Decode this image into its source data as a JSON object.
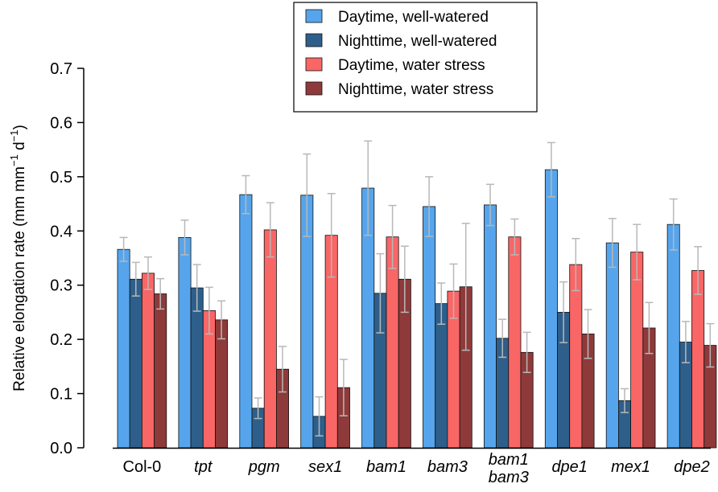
{
  "chart_data": {
    "type": "bar",
    "title": "",
    "xlabel": "",
    "ylabel": "Relative elongation rate (mm mm",
    "ylabel_sup1": "−1",
    "ylabel_mid": " d",
    "ylabel_sup2": "−1",
    "ylabel_end": ")",
    "ylim": [
      0,
      0.7
    ],
    "yticks": [
      "0.0",
      "0.1",
      "0.2",
      "0.3",
      "0.4",
      "0.5",
      "0.6",
      "0.7"
    ],
    "categories": [
      {
        "label": "Col-0",
        "italic": false
      },
      {
        "label": "tpt",
        "italic": true
      },
      {
        "label": "pgm",
        "italic": true
      },
      {
        "label": "sex1",
        "italic": true
      },
      {
        "label": "bam1",
        "italic": true
      },
      {
        "label": "bam3",
        "italic": true
      },
      {
        "label": "bam1",
        "label2": "bam3",
        "italic": true
      },
      {
        "label": "dpe1",
        "italic": true
      },
      {
        "label": "mex1",
        "italic": true
      },
      {
        "label": "dpe2",
        "italic": true
      }
    ],
    "series": [
      {
        "name": "Daytime, well-watered",
        "color": "#56A5EC",
        "values": [
          0.366,
          0.388,
          0.467,
          0.466,
          0.479,
          0.445,
          0.448,
          0.513,
          0.378,
          0.412
        ],
        "errors": [
          0.022,
          0.032,
          0.035,
          0.076,
          0.087,
          0.055,
          0.038,
          0.05,
          0.045,
          0.047
        ]
      },
      {
        "name": "Nighttime, well-watered",
        "color": "#2E5F8A",
        "values": [
          0.311,
          0.295,
          0.073,
          0.058,
          0.285,
          0.266,
          0.202,
          0.25,
          0.087,
          0.195
        ],
        "errors": [
          0.031,
          0.043,
          0.019,
          0.036,
          0.073,
          0.038,
          0.035,
          0.056,
          0.022,
          0.038
        ]
      },
      {
        "name": "Daytime, water stress",
        "color": "#F96666",
        "values": [
          0.322,
          0.253,
          0.402,
          0.392,
          0.389,
          0.289,
          0.389,
          0.338,
          0.361,
          0.327
        ],
        "errors": [
          0.03,
          0.043,
          0.05,
          0.077,
          0.058,
          0.05,
          0.033,
          0.048,
          0.051,
          0.044
        ]
      },
      {
        "name": "Nighttime, water stress",
        "color": "#8E3A3A",
        "values": [
          0.284,
          0.236,
          0.145,
          0.111,
          0.311,
          0.297,
          0.176,
          0.21,
          0.221,
          0.189
        ],
        "errors": [
          0.028,
          0.035,
          0.042,
          0.052,
          0.061,
          0.117,
          0.037,
          0.045,
          0.047,
          0.04
        ]
      }
    ],
    "legend_position": "top-center"
  }
}
